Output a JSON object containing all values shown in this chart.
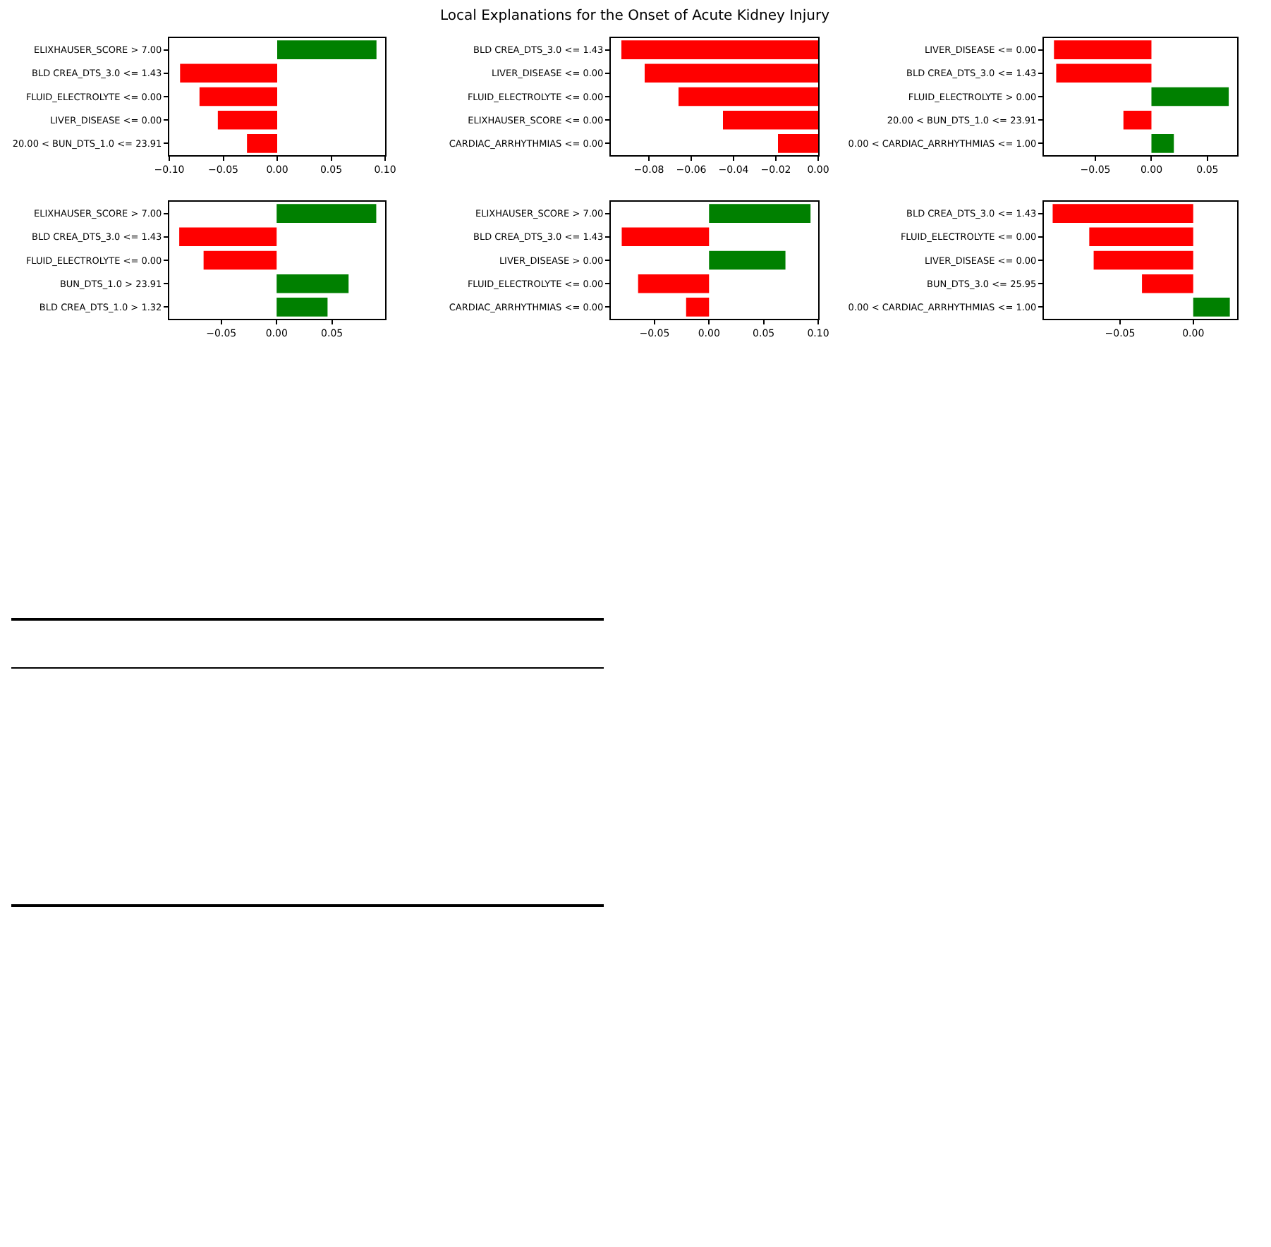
{
  "chart_data": [
    {
      "type": "bar",
      "orientation": "horizontal",
      "categories": [
        "ELIXHAUSER_SCORE > 7.00",
        "BLD CREA_DTS_3.0 <= 1.43",
        "FLUID_ELECTROLYTE <= 0.00",
        "LIVER_DISEASE <= 0.00",
        "20.00 < BUN_DTS_1.0 <= 23.91"
      ],
      "values": [
        0.092,
        -0.09,
        -0.072,
        -0.055,
        -0.028
      ],
      "colors": [
        "#008000",
        "#ff0000",
        "#ff0000",
        "#ff0000",
        "#ff0000"
      ],
      "xlim": [
        -0.1,
        0.1
      ],
      "xticks": [
        {
          "value": -0.1,
          "label": "−0.10"
        },
        {
          "value": -0.05,
          "label": "−0.05"
        },
        {
          "value": 0,
          "label": "0.00"
        },
        {
          "value": 0.05,
          "label": "0.05"
        },
        {
          "value": 0.1,
          "label": "0.10"
        }
      ]
    },
    {
      "type": "bar",
      "orientation": "horizontal",
      "title": "Local Explanations for the Onset of Acute Kidney Injury",
      "categories": [
        "BLD CREA_DTS_3.0 <= 1.43",
        "LIVER_DISEASE <= 0.00",
        "FLUID_ELECTROLYTE <= 0.00",
        "ELIXHAUSER_SCORE <= 0.00",
        "CARDIAC_ARRHYTHMIAS <= 0.00"
      ],
      "values": [
        -0.093,
        -0.082,
        -0.066,
        -0.045,
        -0.019
      ],
      "colors": [
        "#ff0000",
        "#ff0000",
        "#ff0000",
        "#ff0000",
        "#ff0000"
      ],
      "xlim": [
        -0.098,
        0.0
      ],
      "xticks": [
        {
          "value": -0.08,
          "label": "−0.08"
        },
        {
          "value": -0.06,
          "label": "−0.06"
        },
        {
          "value": -0.04,
          "label": "−0.04"
        },
        {
          "value": -0.02,
          "label": "−0.02"
        },
        {
          "value": 0,
          "label": "0.00"
        }
      ]
    },
    {
      "type": "bar",
      "orientation": "horizontal",
      "categories": [
        "LIVER_DISEASE <= 0.00",
        "BLD CREA_DTS_3.0 <= 1.43",
        "FLUID_ELECTROLYTE > 0.00",
        "20.00 < BUN_DTS_1.0 <= 23.91",
        "0.00 < CARDIAC_ARRHYTHMIAS <= 1.00"
      ],
      "values": [
        -0.087,
        -0.085,
        0.069,
        -0.025,
        0.02
      ],
      "colors": [
        "#ff0000",
        "#ff0000",
        "#008000",
        "#ff0000",
        "#008000"
      ],
      "xlim": [
        -0.096,
        0.0765
      ],
      "xticks": [
        {
          "value": -0.05,
          "label": "−0.05"
        },
        {
          "value": 0,
          "label": "0.00"
        },
        {
          "value": 0.05,
          "label": "0.05"
        }
      ]
    },
    {
      "type": "bar",
      "orientation": "horizontal",
      "categories": [
        "ELIXHAUSER_SCORE > 7.00",
        "BLD CREA_DTS_3.0 <= 1.43",
        "FLUID_ELECTROLYTE <= 0.00",
        "BUN_DTS_1.0 > 23.91",
        "BLD CREA_DTS_1.0 > 1.32"
      ],
      "values": [
        0.09,
        -0.088,
        -0.066,
        0.065,
        0.046
      ],
      "colors": [
        "#008000",
        "#ff0000",
        "#ff0000",
        "#008000",
        "#008000"
      ],
      "xlim": [
        -0.097,
        0.098
      ],
      "xticks": [
        {
          "value": -0.05,
          "label": "−0.05"
        },
        {
          "value": 0,
          "label": "0.00"
        },
        {
          "value": 0.05,
          "label": "0.05"
        }
      ]
    },
    {
      "type": "bar",
      "orientation": "horizontal",
      "categories": [
        "ELIXHAUSER_SCORE > 7.00",
        "BLD CREA_DTS_3.0 <= 1.43",
        "LIVER_DISEASE > 0.00",
        "FLUID_ELECTROLYTE <= 0.00",
        "CARDIAC_ARRHYTHMIAS <= 0.00"
      ],
      "values": [
        0.093,
        -0.08,
        0.07,
        -0.065,
        -0.021
      ],
      "colors": [
        "#008000",
        "#ff0000",
        "#008000",
        "#ff0000",
        "#ff0000"
      ],
      "xlim": [
        -0.09,
        0.1
      ],
      "xticks": [
        {
          "value": -0.05,
          "label": "−0.05"
        },
        {
          "value": 0,
          "label": "0.00"
        },
        {
          "value": 0.05,
          "label": "0.05"
        },
        {
          "value": 0.1,
          "label": "0.10"
        }
      ]
    },
    {
      "type": "bar",
      "orientation": "horizontal",
      "categories": [
        "BLD CREA_DTS_3.0 <= 1.43",
        "FLUID_ELECTROLYTE <= 0.00",
        "LIVER_DISEASE <= 0.00",
        "BUN_DTS_3.0 <= 25.95",
        "0.00 < CARDIAC_ARRHYTHMIAS <= 1.00"
      ],
      "values": [
        -0.096,
        -0.071,
        -0.068,
        -0.035,
        0.025
      ],
      "colors": [
        "#ff0000",
        "#ff0000",
        "#ff0000",
        "#ff0000",
        "#008000"
      ],
      "xlim": [
        -0.102,
        0.03
      ],
      "xticks": [
        {
          "value": -0.05,
          "label": "−0.05"
        },
        {
          "value": 0,
          "label": "0.00"
        }
      ]
    }
  ]
}
